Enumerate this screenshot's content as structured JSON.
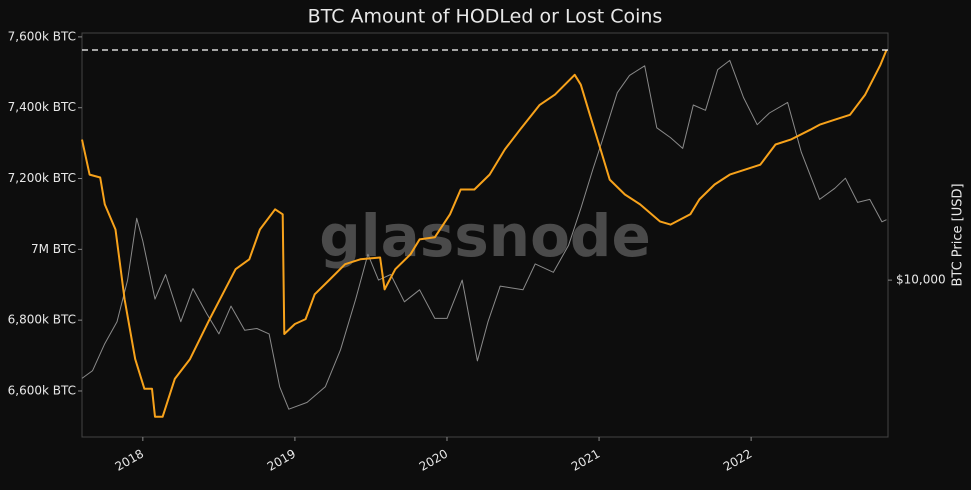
{
  "chart_data": {
    "type": "line",
    "title": "BTC Amount of HODLed or Lost Coins",
    "watermark": "glassnode",
    "y2label": "BTC Price [USD]",
    "xlim": [
      2017.6,
      2022.9
    ],
    "xticks": [
      2018,
      2019,
      2020,
      2021,
      2022
    ],
    "ylim": [
      6470,
      7611
    ],
    "yticks": [
      {
        "value": 6600,
        "label": "6,600k BTC"
      },
      {
        "value": 6800,
        "label": "6,800k BTC"
      },
      {
        "value": 7000,
        "label": "7M BTC"
      },
      {
        "value": 7200,
        "label": "7,200k BTC"
      },
      {
        "value": 7400,
        "label": "7,400k BTC"
      },
      {
        "value": 7600,
        "label": "7,600k BTC"
      }
    ],
    "y2lim": [
      2600,
      83500
    ],
    "y2log": true,
    "y2ticks": [
      {
        "value": 10000,
        "label": "$10,000"
      }
    ],
    "reference_line": 7563,
    "series": [
      {
        "color": "#f7a21b",
        "x": [
          2017.6,
          2017.65,
          2017.72,
          2017.75,
          2017.82,
          2017.88,
          2017.95,
          2018.01,
          2018.06,
          2018.08,
          2018.13,
          2018.21,
          2018.31,
          2018.44,
          2018.61,
          2018.7,
          2018.77,
          2018.87,
          2018.92,
          2018.93,
          2019.0,
          2019.07,
          2019.13,
          2019.23,
          2019.33,
          2019.43,
          2019.56,
          2019.59,
          2019.66,
          2019.76,
          2019.82,
          2019.92,
          2020.02,
          2020.09,
          2020.18,
          2020.28,
          2020.38,
          2020.48,
          2020.61,
          2020.71,
          2020.84,
          2020.88,
          2020.94,
          2021.01,
          2021.07,
          2021.17,
          2021.27,
          2021.4,
          2021.47,
          2021.6,
          2021.66,
          2021.76,
          2021.86,
          2022.06,
          2022.16,
          2022.26,
          2022.39,
          2022.45,
          2022.55,
          2022.65,
          2022.75,
          2022.85,
          2022.89
        ],
        "values": [
          7310,
          7211,
          7203,
          7127,
          7056,
          6859,
          6690,
          6606,
          6606,
          6527,
          6527,
          6634,
          6690,
          6803,
          6944,
          6972,
          7056,
          7113,
          7099,
          6761,
          6789,
          6803,
          6873,
          6915,
          6958,
          6972,
          6977,
          6887,
          6944,
          6986,
          7028,
          7034,
          7099,
          7169,
          7169,
          7211,
          7282,
          7338,
          7408,
          7437,
          7493,
          7465,
          7380,
          7282,
          7197,
          7155,
          7127,
          7079,
          7070,
          7099,
          7141,
          7183,
          7211,
          7239,
          7296,
          7310,
          7338,
          7352,
          7366,
          7380,
          7437,
          7521,
          7563
        ]
      },
      {
        "color": "#8a8a8a",
        "axis": "y2",
        "x": [
          2017.6,
          2017.67,
          2017.75,
          2017.83,
          2017.9,
          2017.96,
          2018.0,
          2018.08,
          2018.15,
          2018.25,
          2018.33,
          2018.42,
          2018.5,
          2018.58,
          2018.67,
          2018.75,
          2018.83,
          2018.9,
          2018.96,
          2019.08,
          2019.2,
          2019.3,
          2019.4,
          2019.48,
          2019.55,
          2019.63,
          2019.72,
          2019.82,
          2019.92,
          2020.0,
          2020.1,
          2020.2,
          2020.27,
          2020.35,
          2020.5,
          2020.58,
          2020.7,
          2020.8,
          2020.88,
          2020.96,
          2021.02,
          2021.12,
          2021.2,
          2021.3,
          2021.38,
          2021.47,
          2021.55,
          2021.62,
          2021.7,
          2021.78,
          2021.86,
          2021.95,
          2022.04,
          2022.12,
          2022.24,
          2022.33,
          2022.45,
          2022.55,
          2022.62,
          2022.7,
          2022.78,
          2022.86,
          2022.89
        ],
        "values": [
          4300,
          4600,
          5800,
          7000,
          10000,
          17000,
          14000,
          8500,
          10500,
          7000,
          9300,
          7500,
          6300,
          8000,
          6500,
          6600,
          6300,
          4000,
          3300,
          3500,
          4000,
          5500,
          8500,
          12500,
          10000,
          10500,
          8300,
          9200,
          7200,
          7200,
          10000,
          5000,
          7000,
          9500,
          9200,
          11500,
          10700,
          13500,
          18500,
          26000,
          33000,
          50000,
          58000,
          63000,
          37000,
          34000,
          31000,
          45000,
          43000,
          61000,
          66000,
          48000,
          38000,
          42000,
          46000,
          30000,
          20000,
          22000,
          24000,
          19500,
          20000,
          16500,
          16800
        ]
      }
    ]
  }
}
